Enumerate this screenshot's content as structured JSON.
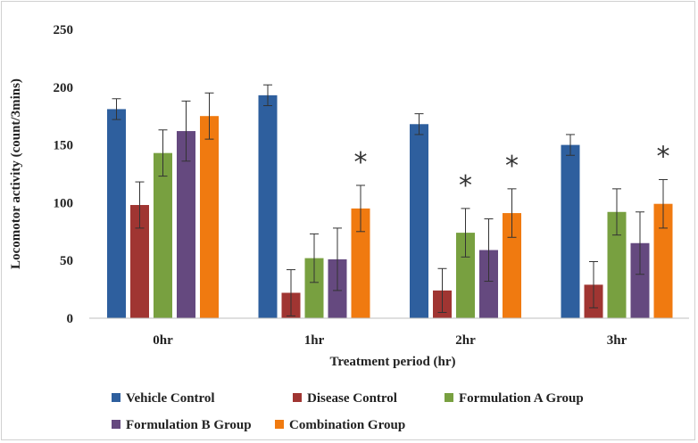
{
  "chart_data": {
    "type": "bar",
    "categories": [
      "0hr",
      "1hr",
      "2hr",
      "3hr"
    ],
    "series": [
      {
        "name": "Vehicle Control",
        "color": "#2E5F9E",
        "values": [
          181,
          193,
          168,
          150
        ],
        "errors": [
          9,
          9,
          9,
          9
        ]
      },
      {
        "name": "Disease Control",
        "color": "#A03532",
        "values": [
          98,
          22,
          24,
          29
        ],
        "errors": [
          20,
          20,
          19,
          20
        ]
      },
      {
        "name": "Formulation A Group",
        "color": "#78A040",
        "values": [
          143,
          52,
          74,
          92
        ],
        "errors": [
          20,
          21,
          21,
          20
        ]
      },
      {
        "name": "Formulation B Group",
        "color": "#65497F",
        "values": [
          162,
          51,
          59,
          65
        ],
        "errors": [
          26,
          27,
          27,
          27
        ]
      },
      {
        "name": "Combination Group",
        "color": "#F07A10",
        "values": [
          175,
          95,
          91,
          99
        ],
        "errors": [
          20,
          20,
          21,
          21
        ]
      }
    ],
    "significance": [
      {
        "category": "1hr",
        "series": "Combination Group",
        "label": "*"
      },
      {
        "category": "2hr",
        "series": "Formulation A Group",
        "label": "*"
      },
      {
        "category": "2hr",
        "series": "Combination Group",
        "label": "*"
      },
      {
        "category": "3hr",
        "series": "Combination Group",
        "label": "*"
      }
    ],
    "xlabel": "Treatment period (hr)",
    "ylabel": "Locomotor activity (count/3mins)",
    "ylim": [
      0,
      250
    ],
    "yticks": [
      0,
      50,
      100,
      150,
      200,
      250
    ],
    "grid": false,
    "legend": "bottom"
  }
}
